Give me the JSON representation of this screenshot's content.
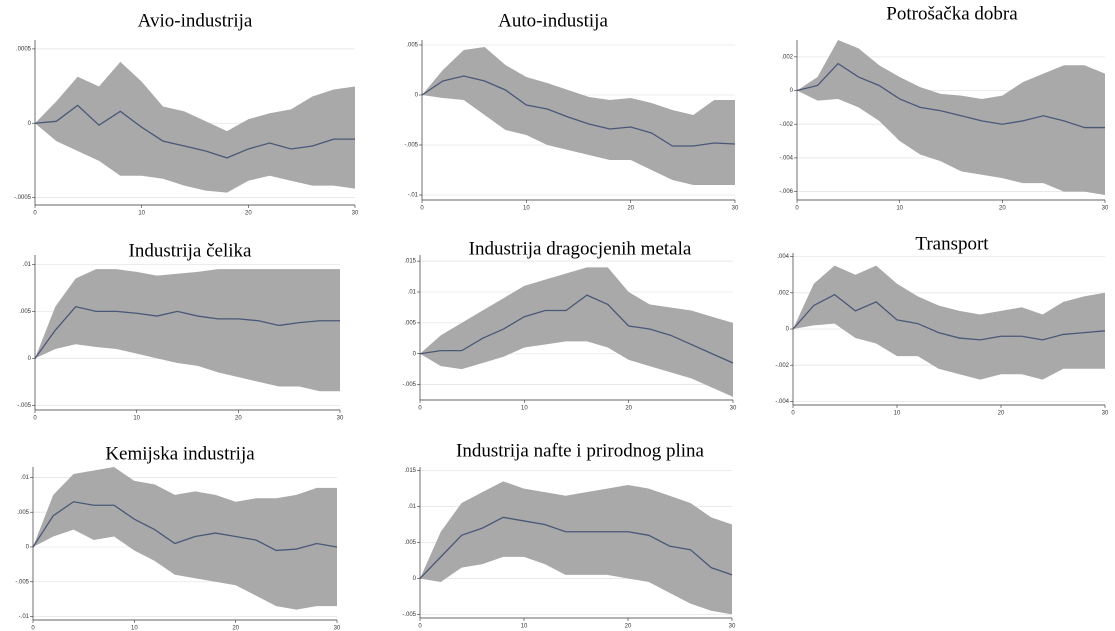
{
  "chart_data": [
    {
      "type": "line",
      "title": "Avio-industrija",
      "x": [
        0,
        2,
        4,
        6,
        8,
        10,
        12,
        14,
        16,
        18,
        20,
        22,
        24,
        26,
        28,
        30
      ],
      "values": [
        0,
        1.3e-05,
        0.00012,
        -1.3e-05,
        8e-05,
        -2.7e-05,
        -0.00012,
        -0.000153,
        -0.000187,
        -0.000233,
        -0.000173,
        -0.000133,
        -0.000173,
        -0.000153,
        -0.000107,
        -0.000107
      ],
      "upper": [
        0,
        0.000147,
        0.000313,
        0.000247,
        0.000413,
        0.00028,
        0.000113,
        8e-05,
        1.3e-05,
        -5.3e-05,
        2.7e-05,
        6.7e-05,
        9.3e-05,
        0.00018,
        0.000227,
        0.000247
      ],
      "lower": [
        0,
        -0.00012,
        -0.000187,
        -0.000253,
        -0.000353,
        -0.000353,
        -0.000373,
        -0.00042,
        -0.000453,
        -0.000467,
        -0.000387,
        -0.000353,
        -0.000387,
        -0.00042,
        -0.00042,
        -0.00044
      ],
      "xlim": [
        0,
        30
      ],
      "ylim": [
        -0.00055,
        0.00056
      ],
      "xticks": [
        0,
        10,
        20,
        30
      ],
      "yticks": [
        {
          "value": -0.0005,
          "label": "-.0005"
        },
        0,
        {
          "value": 0.0005,
          "label": ".0005"
        }
      ],
      "grid": true,
      "color": "#4a5878",
      "band_color": "#a9a9a9"
    },
    {
      "type": "line",
      "title": "Auto-industija",
      "x": [
        0,
        2,
        4,
        6,
        8,
        10,
        12,
        14,
        16,
        18,
        20,
        22,
        24,
        26,
        28,
        30
      ],
      "values": [
        0,
        0.0014,
        0.0019,
        0.0014,
        0.0005,
        -0.001,
        -0.0014,
        -0.0022,
        -0.0029,
        -0.0034,
        -0.0032,
        -0.0038,
        -0.0051,
        -0.0051,
        -0.0048,
        -0.0049
      ],
      "upper": [
        0,
        0.0025,
        0.0045,
        0.0048,
        0.003,
        0.0018,
        0.0012,
        0.0005,
        -0.0002,
        -0.0005,
        -0.0003,
        -0.0008,
        -0.0015,
        -0.002,
        -0.0005,
        -0.0005
      ],
      "lower": [
        0,
        -0.0003,
        -0.0005,
        -0.002,
        -0.0035,
        -0.004,
        -0.005,
        -0.0055,
        -0.006,
        -0.0065,
        -0.0065,
        -0.0075,
        -0.0085,
        -0.009,
        -0.009,
        -0.009
      ],
      "xlim": [
        0,
        30
      ],
      "ylim": [
        -0.0105,
        0.0055
      ],
      "xticks": [
        0,
        10,
        20,
        30
      ],
      "yticks": [
        {
          "value": -0.01,
          "label": "-.01"
        },
        {
          "value": -0.005,
          "label": "-.005"
        },
        0,
        {
          "value": 0.005,
          "label": ".005"
        }
      ],
      "grid": true,
      "color": "#4a5878",
      "band_color": "#a9a9a9"
    },
    {
      "type": "line",
      "title": "Potrošačka dobra",
      "x": [
        0,
        2,
        4,
        6,
        8,
        10,
        12,
        14,
        16,
        18,
        20,
        22,
        24,
        26,
        28,
        30
      ],
      "values": [
        0,
        0.0003,
        0.0016,
        0.0008,
        0.0003,
        -0.0005,
        -0.001,
        -0.0012,
        -0.0015,
        -0.0018,
        -0.002,
        -0.0018,
        -0.0015,
        -0.0018,
        -0.0022,
        -0.0022
      ],
      "upper": [
        0,
        0.0008,
        0.003,
        0.0025,
        0.0015,
        0.0008,
        0.0002,
        -0.0002,
        -0.0003,
        -0.0005,
        -0.0003,
        0.0005,
        0.001,
        0.0015,
        0.0015,
        0.001
      ],
      "lower": [
        0,
        -0.0006,
        -0.0005,
        -0.001,
        -0.0018,
        -0.003,
        -0.0038,
        -0.0042,
        -0.0048,
        -0.005,
        -0.0052,
        -0.0055,
        -0.0055,
        -0.006,
        -0.006,
        -0.0062
      ],
      "xlim": [
        0,
        30
      ],
      "ylim": [
        -0.0065,
        0.003
      ],
      "xticks": [
        0,
        10,
        20,
        30
      ],
      "yticks": [
        {
          "value": -0.006,
          "label": "-.006"
        },
        {
          "value": -0.004,
          "label": "-.004"
        },
        {
          "value": -0.002,
          "label": "-.002"
        },
        0,
        {
          "value": 0.002,
          "label": ".002"
        }
      ],
      "grid": true,
      "color": "#4a5878",
      "band_color": "#a9a9a9"
    },
    {
      "type": "line",
      "title": "Industrija čelika",
      "x": [
        0,
        2,
        4,
        6,
        8,
        10,
        12,
        14,
        16,
        18,
        20,
        22,
        24,
        26,
        28,
        30
      ],
      "values": [
        0,
        0.003,
        0.0055,
        0.005,
        0.005,
        0.0048,
        0.0045,
        0.005,
        0.0045,
        0.0042,
        0.0042,
        0.004,
        0.0035,
        0.0038,
        0.004,
        0.004
      ],
      "upper": [
        0,
        0.0055,
        0.0085,
        0.0095,
        0.0095,
        0.0092,
        0.0088,
        0.009,
        0.0092,
        0.0095,
        0.0095,
        0.0095,
        0.0095,
        0.0095,
        0.0095,
        0.0095
      ],
      "lower": [
        0,
        0.001,
        0.0015,
        0.0012,
        0.001,
        0.0005,
        0,
        -0.0005,
        -0.0008,
        -0.0015,
        -0.002,
        -0.0025,
        -0.003,
        -0.003,
        -0.0035,
        -0.0035
      ],
      "xlim": [
        0,
        30
      ],
      "ylim": [
        -0.0055,
        0.011
      ],
      "xticks": [
        0,
        10,
        20,
        30
      ],
      "yticks": [
        {
          "value": -0.005,
          "label": "-.005"
        },
        0,
        {
          "value": 0.005,
          "label": ".005"
        },
        {
          "value": 0.01,
          "label": ".01"
        }
      ],
      "grid": true,
      "color": "#4a5878",
      "band_color": "#a9a9a9"
    },
    {
      "type": "line",
      "title": "Industrija dragocjenih metala",
      "x": [
        0,
        2,
        4,
        6,
        8,
        10,
        12,
        14,
        16,
        18,
        20,
        22,
        24,
        26,
        28,
        30
      ],
      "values": [
        0,
        0.0005,
        0.0005,
        0.0025,
        0.004,
        0.006,
        0.007,
        0.007,
        0.0095,
        0.008,
        0.0045,
        0.004,
        0.003,
        0.0015,
        0,
        -0.0015
      ],
      "upper": [
        0,
        0.003,
        0.005,
        0.007,
        0.009,
        0.011,
        0.012,
        0.013,
        0.014,
        0.014,
        0.01,
        0.008,
        0.0075,
        0.007,
        0.006,
        0.005
      ],
      "lower": [
        0,
        -0.002,
        -0.0025,
        -0.0015,
        -0.0005,
        0.001,
        0.0015,
        0.002,
        0.002,
        0.001,
        -0.001,
        -0.002,
        -0.003,
        -0.004,
        -0.0055,
        -0.007
      ],
      "xlim": [
        0,
        30
      ],
      "ylim": [
        -0.0075,
        0.016
      ],
      "xticks": [
        0,
        10,
        20,
        30
      ],
      "yticks": [
        {
          "value": -0.005,
          "label": "-.005"
        },
        0,
        {
          "value": 0.005,
          "label": ".005"
        },
        {
          "value": 0.01,
          "label": ".01"
        },
        {
          "value": 0.015,
          "label": ".015"
        }
      ],
      "grid": true,
      "color": "#4a5878",
      "band_color": "#a9a9a9"
    },
    {
      "type": "line",
      "title": "Transport",
      "x": [
        0,
        2,
        4,
        6,
        8,
        10,
        12,
        14,
        16,
        18,
        20,
        22,
        24,
        26,
        28,
        30
      ],
      "values": [
        0,
        0.0013,
        0.0019,
        0.001,
        0.0015,
        0.0005,
        0.0003,
        -0.0002,
        -0.0005,
        -0.0006,
        -0.0004,
        -0.0004,
        -0.0006,
        -0.0003,
        -0.0002,
        -0.0001
      ],
      "upper": [
        0,
        0.0025,
        0.0035,
        0.003,
        0.0035,
        0.0025,
        0.0018,
        0.0013,
        0.001,
        0.0008,
        0.001,
        0.0012,
        0.0008,
        0.0015,
        0.0018,
        0.002
      ],
      "lower": [
        0,
        0.0002,
        0.0003,
        -0.0005,
        -0.0008,
        -0.0015,
        -0.0015,
        -0.0022,
        -0.0025,
        -0.0028,
        -0.0025,
        -0.0025,
        -0.0028,
        -0.0022,
        -0.0022,
        -0.0022
      ],
      "xlim": [
        0,
        30
      ],
      "ylim": [
        -0.0042,
        0.0042
      ],
      "xticks": [
        0,
        10,
        20,
        30
      ],
      "yticks": [
        {
          "value": -0.004,
          "label": "-.004"
        },
        {
          "value": -0.002,
          "label": "-.002"
        },
        0,
        {
          "value": 0.002,
          "label": ".002"
        },
        {
          "value": 0.004,
          "label": ".004"
        }
      ],
      "grid": true,
      "color": "#4a5878",
      "band_color": "#a9a9a9"
    },
    {
      "type": "line",
      "title": "Kemijska industrija",
      "x": [
        0,
        2,
        4,
        6,
        8,
        10,
        12,
        14,
        16,
        18,
        20,
        22,
        24,
        26,
        28,
        30
      ],
      "values": [
        0,
        0.0045,
        0.0065,
        0.006,
        0.006,
        0.004,
        0.0025,
        0.0005,
        0.0015,
        0.002,
        0.0015,
        0.001,
        -0.0005,
        -0.0003,
        0.0005,
        0
      ],
      "upper": [
        0,
        0.0075,
        0.0105,
        0.011,
        0.0115,
        0.0095,
        0.009,
        0.0075,
        0.008,
        0.0075,
        0.0065,
        0.007,
        0.007,
        0.0075,
        0.0085,
        0.0085
      ],
      "lower": [
        0,
        0.0015,
        0.0025,
        0.001,
        0.0015,
        -0.0005,
        -0.002,
        -0.004,
        -0.0045,
        -0.005,
        -0.0055,
        -0.007,
        -0.0085,
        -0.009,
        -0.0085,
        -0.0085
      ],
      "xlim": [
        0,
        30
      ],
      "ylim": [
        -0.0105,
        0.0115
      ],
      "xticks": [
        0,
        10,
        20,
        30
      ],
      "yticks": [
        {
          "value": -0.01,
          "label": "-.01"
        },
        {
          "value": -0.005,
          "label": "-.005"
        },
        0,
        {
          "value": 0.005,
          "label": ".005"
        },
        {
          "value": 0.01,
          "label": ".01"
        }
      ],
      "grid": true,
      "color": "#4a5878",
      "band_color": "#a9a9a9"
    },
    {
      "type": "line",
      "title": "Industrija nafte i prirodnog plina",
      "x": [
        0,
        2,
        4,
        6,
        8,
        10,
        12,
        14,
        16,
        18,
        20,
        22,
        24,
        26,
        28,
        30
      ],
      "values": [
        0,
        0.003,
        0.006,
        0.007,
        0.0085,
        0.008,
        0.0075,
        0.0065,
        0.0065,
        0.0065,
        0.0065,
        0.006,
        0.0045,
        0.004,
        0.0015,
        0.0005
      ],
      "upper": [
        0,
        0.0065,
        0.0105,
        0.012,
        0.0135,
        0.0125,
        0.012,
        0.0115,
        0.012,
        0.0125,
        0.013,
        0.0125,
        0.0115,
        0.0105,
        0.0085,
        0.0075
      ],
      "lower": [
        0,
        -0.0005,
        0.0015,
        0.002,
        0.003,
        0.003,
        0.002,
        0.0005,
        0.0005,
        0.0005,
        0,
        -0.0005,
        -0.002,
        -0.0035,
        -0.0045,
        -0.005
      ],
      "xlim": [
        0,
        30
      ],
      "ylim": [
        -0.0055,
        0.0155
      ],
      "xticks": [
        0,
        10,
        20,
        30
      ],
      "yticks": [
        {
          "value": -0.005,
          "label": "-.005"
        },
        0,
        {
          "value": 0.005,
          "label": ".005"
        },
        {
          "value": 0.01,
          "label": ".01"
        },
        {
          "value": 0.015,
          "label": ".015"
        }
      ],
      "grid": true,
      "color": "#4a5878",
      "band_color": "#a9a9a9"
    }
  ]
}
